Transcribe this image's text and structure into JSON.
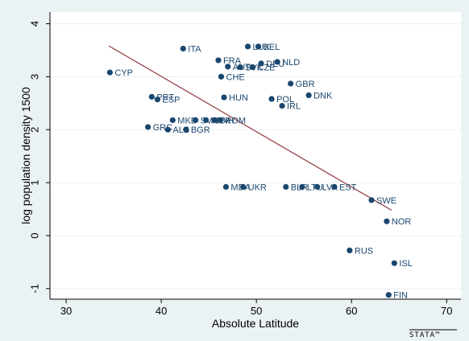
{
  "chart_data": {
    "type": "scatter",
    "title": "",
    "xlabel": "Absolute Latitude",
    "ylabel": "log population density 1500",
    "xlim": [
      28.3,
      71.5
    ],
    "ylim": [
      -1.2,
      4.22
    ],
    "x_ticks": [
      30,
      40,
      50,
      60,
      70
    ],
    "y_ticks": [
      4,
      3,
      2,
      1,
      0,
      -1
    ],
    "grid": true,
    "legend": "none",
    "colors": {
      "marker": "#1a476f",
      "fit_line": "#90353b",
      "plot_bg": "#ffffff",
      "outer_bg": "#eaf2f3",
      "grid": "#eaf2f3"
    },
    "fit_line": {
      "x": [
        34.5,
        64.2
      ],
      "y": [
        3.58,
        0.48
      ]
    },
    "points": [
      {
        "label": "CYP",
        "x": 34.6,
        "y": 3.08
      },
      {
        "label": "ITA",
        "x": 42.3,
        "y": 3.53
      },
      {
        "label": "LUX",
        "x": 49.1,
        "y": 3.57
      },
      {
        "label": "BEL",
        "x": 50.2,
        "y": 3.57
      },
      {
        "label": "FRA",
        "x": 46.0,
        "y": 3.31
      },
      {
        "label": "AUT",
        "x": 47.0,
        "y": 3.19
      },
      {
        "label": "SVK",
        "x": 48.3,
        "y": 3.18
      },
      {
        "label": "CZE",
        "x": 49.6,
        "y": 3.18
      },
      {
        "label": "DEU",
        "x": 50.5,
        "y": 3.25
      },
      {
        "label": "NLD",
        "x": 52.2,
        "y": 3.28
      },
      {
        "label": "CHE",
        "x": 46.3,
        "y": 3.0
      },
      {
        "label": "GBR",
        "x": 53.6,
        "y": 2.87
      },
      {
        "label": "DNK",
        "x": 55.5,
        "y": 2.65
      },
      {
        "label": "HUN",
        "x": 46.6,
        "y": 2.61
      },
      {
        "label": "POL",
        "x": 51.6,
        "y": 2.58
      },
      {
        "label": "IRL",
        "x": 52.7,
        "y": 2.45
      },
      {
        "label": "PRT",
        "x": 39.0,
        "y": 2.62
      },
      {
        "label": "ESP",
        "x": 39.6,
        "y": 2.57
      },
      {
        "label": "MKD",
        "x": 41.2,
        "y": 2.18
      },
      {
        "label": "SVN",
        "x": 43.6,
        "y": 2.18
      },
      {
        "label": "HRV",
        "x": 44.7,
        "y": 2.18
      },
      {
        "label": "BIH",
        "x": 45.6,
        "y": 2.18
      },
      {
        "label": "ROM",
        "x": 46.2,
        "y": 2.18
      },
      {
        "label": "GRC",
        "x": 38.6,
        "y": 2.05
      },
      {
        "label": "ALB",
        "x": 40.7,
        "y": 2.0
      },
      {
        "label": "BGR",
        "x": 42.6,
        "y": 2.0
      },
      {
        "label": "MDA",
        "x": 46.8,
        "y": 0.92
      },
      {
        "label": "UKR",
        "x": 48.6,
        "y": 0.92
      },
      {
        "label": "BLR",
        "x": 53.1,
        "y": 0.92
      },
      {
        "label": "LTU",
        "x": 54.8,
        "y": 0.92
      },
      {
        "label": "LVA",
        "x": 56.4,
        "y": 0.92
      },
      {
        "label": "EST",
        "x": 58.2,
        "y": 0.92
      },
      {
        "label": "SWE",
        "x": 62.1,
        "y": 0.67
      },
      {
        "label": "NOR",
        "x": 63.7,
        "y": 0.27
      },
      {
        "label": "RUS",
        "x": 59.8,
        "y": -0.28
      },
      {
        "label": "ISL",
        "x": 64.5,
        "y": -0.52
      },
      {
        "label": "FIN",
        "x": 63.9,
        "y": -1.12
      }
    ]
  },
  "logo": {
    "text": "STATA™"
  }
}
